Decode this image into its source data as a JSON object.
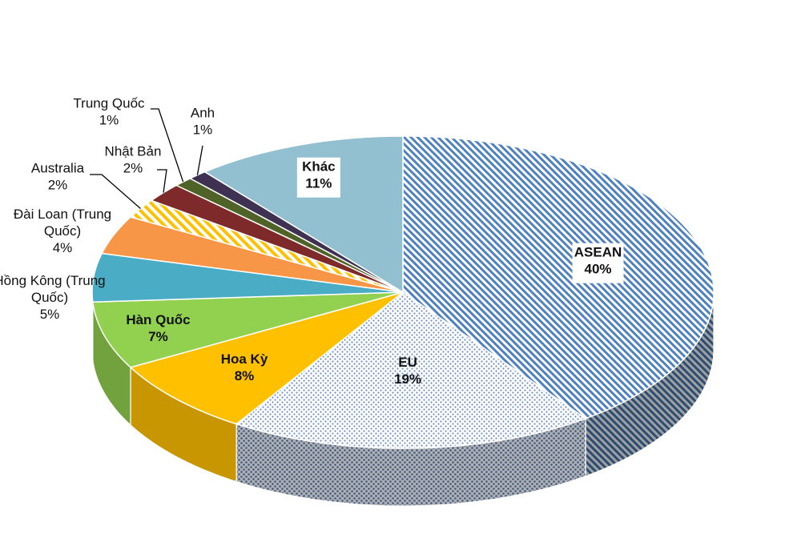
{
  "chart_data": {
    "type": "pie",
    "style": "3d-exploded-pie",
    "slices": [
      {
        "name": "ASEAN",
        "value": 40,
        "label_value": "40%",
        "color": "#4f81bd",
        "pattern": "diagonal-stripes",
        "label_inside": true
      },
      {
        "name": "EU",
        "value": 19,
        "label_value": "19%",
        "color": "#8fb2d9",
        "pattern": "dots",
        "label_inside": true
      },
      {
        "name": "Hoa Kỳ",
        "value": 8,
        "label_value": "8%",
        "color": "#ffc000",
        "label_inside": true
      },
      {
        "name": "Hàn Quốc",
        "value": 7,
        "label_value": "7%",
        "color": "#92d050",
        "label_inside": true
      },
      {
        "name": "Hồng Kông (Trung Quốc)",
        "label_lines": [
          "Hồng Kông (Trung",
          "Quốc)"
        ],
        "value": 5,
        "label_value": "5%",
        "color": "#4bacc6",
        "label_inside": false
      },
      {
        "name": "Đài Loan (Trung Quốc)",
        "label_lines": [
          "Đài Loan (Trung",
          "Quốc)"
        ],
        "value": 4,
        "label_value": "4%",
        "color": "#f79646",
        "label_inside": false
      },
      {
        "name": "Australia",
        "value": 2,
        "label_value": "2%",
        "color": "#ffc000",
        "pattern": "diagonal-stripes-light",
        "label_inside": false
      },
      {
        "name": "Nhật Bản",
        "value": 2,
        "label_value": "2%",
        "color": "#7f2a2a",
        "label_inside": false
      },
      {
        "name": "Trung Quốc",
        "value": 1,
        "label_value": "1%",
        "color": "#4f6228",
        "label_inside": false
      },
      {
        "name": "Anh",
        "value": 1,
        "label_value": "1%",
        "color": "#3f3151",
        "label_inside": false
      },
      {
        "name": "Khác",
        "value": 11,
        "label_value": "11%",
        "color": "#92c0d0",
        "label_inside": true
      }
    ]
  }
}
